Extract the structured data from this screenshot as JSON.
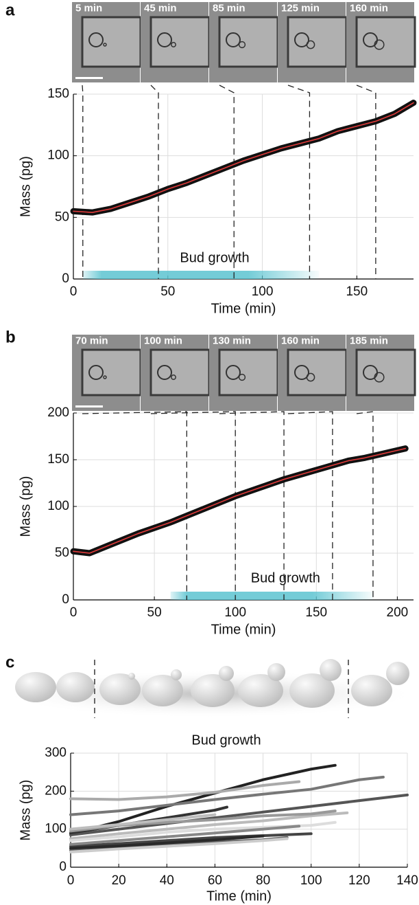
{
  "chart_data": [
    {
      "type": "line",
      "panel": "a",
      "frames": [
        "5 min",
        "45 min",
        "85 min",
        "125 min",
        "160 min"
      ],
      "markers": [
        5,
        45,
        85,
        125,
        160
      ],
      "annotation": "Bud growth",
      "band": [
        5,
        130
      ],
      "band_color": "#5bc3d0",
      "xlabel": "Time (min)",
      "ylabel": "Mass (pg)",
      "xlim": [
        0,
        180
      ],
      "ylim": [
        0,
        150
      ],
      "xticks": [
        0,
        50,
        100,
        150
      ],
      "yticks": [
        0,
        50,
        100,
        150
      ],
      "grid": true,
      "series": [
        {
          "color": "#e23b3b",
          "x": [
            0,
            10,
            20,
            30,
            40,
            50,
            60,
            70,
            80,
            90,
            100,
            110,
            120,
            130,
            140,
            150,
            160,
            170,
            180
          ],
          "values": [
            55,
            54,
            57,
            62,
            67,
            73,
            78,
            84,
            90,
            96,
            101,
            106,
            110,
            114,
            120,
            124,
            128,
            134,
            143
          ]
        }
      ]
    },
    {
      "type": "line",
      "panel": "b",
      "frames": [
        "70 min",
        "100 min",
        "130 min",
        "160 min",
        "185 min"
      ],
      "markers": [
        70,
        100,
        130,
        160,
        185
      ],
      "annotation": "Bud growth",
      "band": [
        60,
        185
      ],
      "band_color": "#5bc3d0",
      "xlabel": "Time (min)",
      "ylabel": "Mass (pg)",
      "xlim": [
        0,
        210
      ],
      "ylim": [
        0,
        200
      ],
      "xticks": [
        0,
        50,
        100,
        150,
        200
      ],
      "yticks": [
        0,
        50,
        100,
        150,
        200
      ],
      "grid": true,
      "series": [
        {
          "color": "#e23b3b",
          "x": [
            0,
            10,
            20,
            30,
            40,
            50,
            60,
            70,
            80,
            90,
            100,
            110,
            120,
            130,
            140,
            150,
            160,
            170,
            180,
            190,
            200,
            205
          ],
          "values": [
            52,
            50,
            57,
            64,
            71,
            77,
            83,
            90,
            97,
            104,
            111,
            117,
            123,
            129,
            134,
            139,
            144,
            149,
            152,
            156,
            160,
            162
          ]
        }
      ]
    },
    {
      "type": "line",
      "panel": "c",
      "annotation": "Bud growth",
      "xlabel": "Time (min)",
      "ylabel": "Mass (pg)",
      "xlim": [
        0,
        140
      ],
      "ylim": [
        0,
        300
      ],
      "xticks": [
        0,
        20,
        40,
        60,
        80,
        100,
        120,
        140
      ],
      "yticks": [
        0,
        100,
        200,
        300
      ],
      "grid": true,
      "series": [
        {
          "color": "#222222",
          "x": [
            0,
            20,
            40,
            60,
            80,
            100,
            110
          ],
          "values": [
            88,
            120,
            160,
            195,
            230,
            258,
            268
          ]
        },
        {
          "color": "#aaaaaa",
          "x": [
            0,
            20,
            40,
            60,
            80,
            95
          ],
          "values": [
            180,
            178,
            185,
            197,
            215,
            225
          ]
        },
        {
          "color": "#777777",
          "x": [
            0,
            20,
            40,
            60,
            80,
            100,
            120,
            130
          ],
          "values": [
            138,
            148,
            163,
            178,
            192,
            205,
            230,
            237
          ]
        },
        {
          "color": "#555555",
          "x": [
            0,
            20,
            40,
            60,
            80,
            100,
            120,
            140
          ],
          "values": [
            85,
            100,
            115,
            130,
            145,
            160,
            175,
            190
          ]
        },
        {
          "color": "#333333",
          "x": [
            0,
            20,
            40,
            60,
            65
          ],
          "values": [
            90,
            110,
            130,
            150,
            158
          ]
        },
        {
          "color": "#bbbbbb",
          "x": [
            0,
            20,
            40,
            60,
            80,
            100,
            115
          ],
          "values": [
            75,
            88,
            100,
            112,
            122,
            135,
            143
          ]
        },
        {
          "color": "#999999",
          "x": [
            0,
            20,
            40,
            60,
            80,
            100,
            110
          ],
          "values": [
            95,
            110,
            118,
            125,
            135,
            140,
            148
          ]
        },
        {
          "color": "#dddddd",
          "x": [
            0,
            20,
            40,
            60,
            80,
            100,
            110
          ],
          "values": [
            70,
            80,
            92,
            100,
            105,
            110,
            118
          ]
        },
        {
          "color": "#444444",
          "x": [
            0,
            20,
            40,
            60,
            80,
            100
          ],
          "values": [
            55,
            62,
            70,
            78,
            83,
            88
          ]
        },
        {
          "color": "#666666",
          "x": [
            0,
            20,
            40,
            60,
            80,
            90
          ],
          "values": [
            45,
            52,
            60,
            66,
            72,
            78
          ]
        },
        {
          "color": "#888888",
          "x": [
            0,
            20,
            40,
            60,
            80,
            95
          ],
          "values": [
            60,
            70,
            80,
            90,
            100,
            108
          ]
        },
        {
          "color": "#cccccc",
          "x": [
            0,
            20,
            40,
            60,
            80,
            90
          ],
          "values": [
            40,
            48,
            55,
            62,
            70,
            75
          ]
        },
        {
          "color": "#2a2a2a",
          "x": [
            0,
            20,
            40,
            60,
            80
          ],
          "values": [
            50,
            56,
            64,
            72,
            82
          ]
        },
        {
          "color": "#bdbdbd",
          "x": [
            0,
            20,
            40,
            60
          ],
          "values": [
            100,
            112,
            125,
            138
          ]
        }
      ]
    }
  ]
}
